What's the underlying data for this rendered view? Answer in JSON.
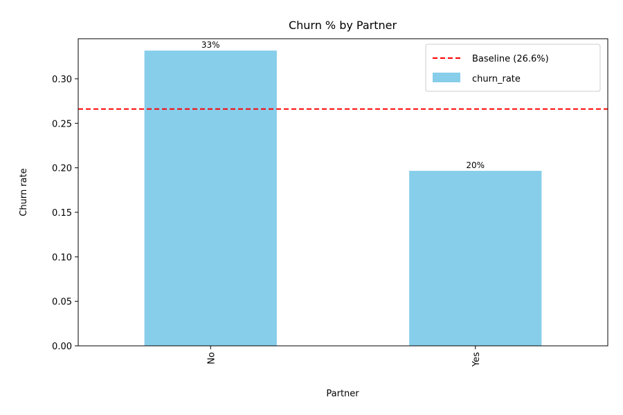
{
  "chart_data": {
    "type": "bar",
    "title": "Churn % by Partner",
    "xlabel": "Partner",
    "ylabel": "Churn rate",
    "categories": [
      "No",
      "Yes"
    ],
    "series": [
      {
        "name": "churn_rate",
        "values": [
          0.3317,
          0.1966
        ],
        "data_labels": [
          "33%",
          "20%"
        ],
        "color": "#87CEEB"
      }
    ],
    "baseline": {
      "value": 0.266,
      "label": "Baseline (26.6%)",
      "color": "#FF0000",
      "style": "dashed"
    },
    "ylim": [
      0,
      0.345
    ],
    "yticks": [
      0.0,
      0.05,
      0.1,
      0.15,
      0.2,
      0.25,
      0.3
    ],
    "ytick_labels": [
      "0.00",
      "0.05",
      "0.10",
      "0.15",
      "0.20",
      "0.25",
      "0.30"
    ],
    "grid": false,
    "legend_position": "top-right"
  }
}
